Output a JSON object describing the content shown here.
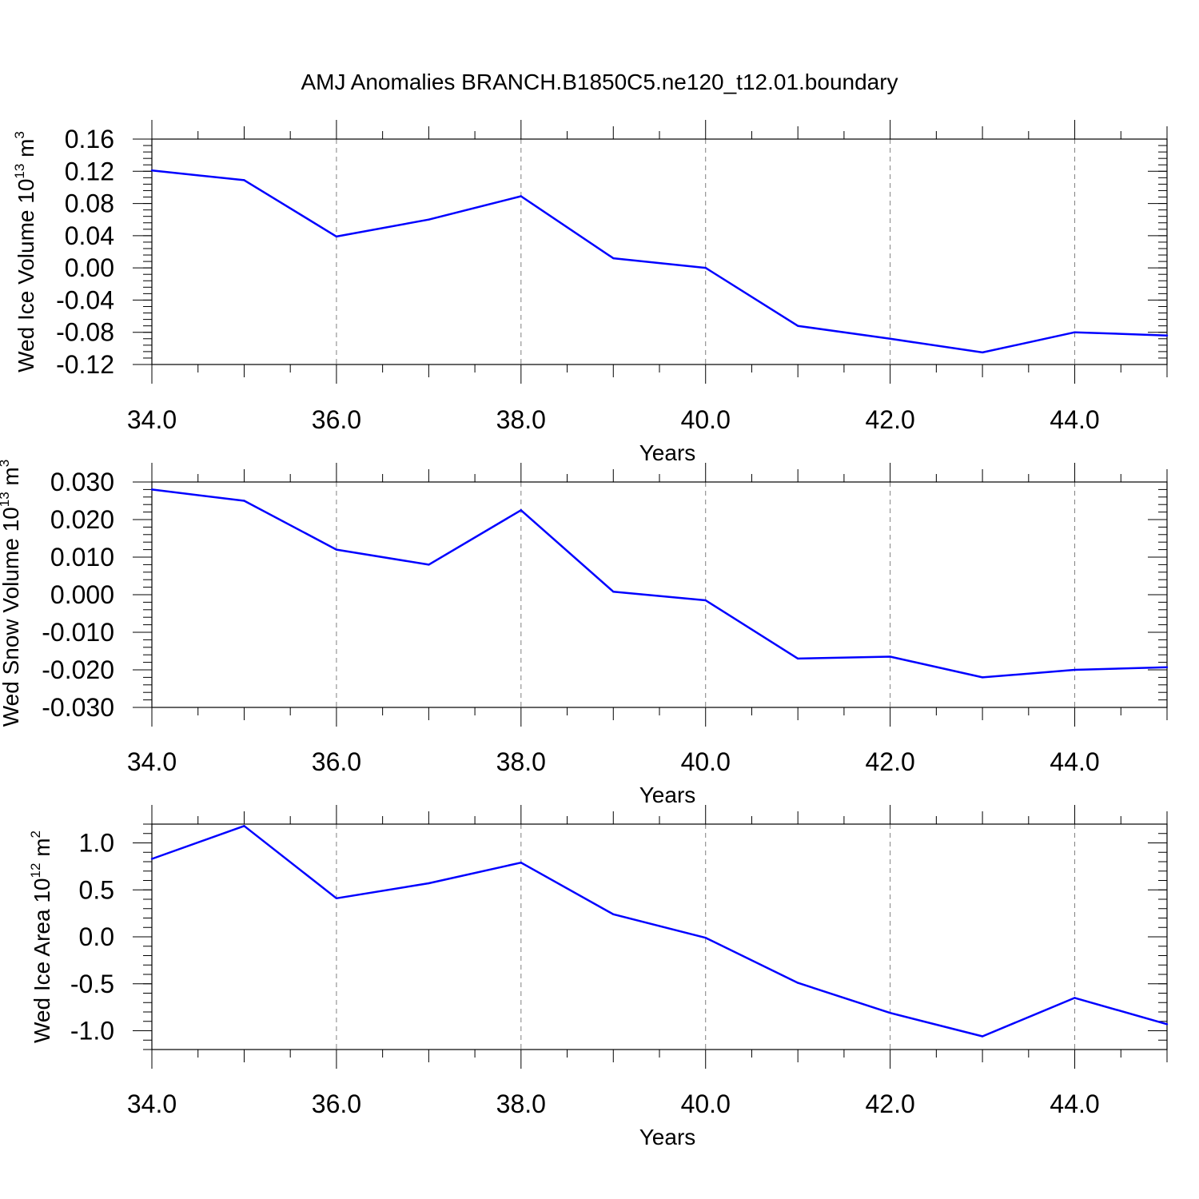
{
  "title": "AMJ Anomalies BRANCH.B1850C5.ne120_t12.01.boundary",
  "colors": {
    "line": "#0000ff",
    "axis": "#000000",
    "grid": "#808080"
  },
  "chart_data": [
    {
      "type": "line",
      "ylabel": {
        "text": "Wed Ice Volume 10",
        "sup": "13",
        "unit": " m",
        "unit_sup": "3"
      },
      "xlabel": "Years",
      "xlim": [
        34,
        45
      ],
      "ylim": [
        -0.12,
        0.16
      ],
      "x_ticks": [
        34,
        36,
        38,
        40,
        42,
        44
      ],
      "x_tick_labels": [
        "34.0",
        "36.0",
        "38.0",
        "40.0",
        "42.0",
        "44.0"
      ],
      "y_ticks": [
        0.16,
        0.12,
        0.08,
        0.04,
        0.0,
        -0.04,
        -0.08,
        -0.12
      ],
      "y_tick_labels": [
        "0.16",
        "0.12",
        "0.08",
        "0.04",
        "0.00",
        "-0.04",
        "-0.08",
        "-0.12"
      ],
      "y_minor_step": 0.008,
      "grid": "vertical-dashed",
      "series": [
        {
          "x": [
            34,
            35,
            36,
            37,
            38,
            39,
            40,
            41,
            42,
            43,
            44,
            45
          ],
          "y": [
            0.121,
            0.109,
            0.039,
            0.06,
            0.089,
            0.012,
            0.0,
            -0.072,
            -0.088,
            -0.105,
            -0.08,
            -0.084
          ]
        }
      ]
    },
    {
      "type": "line",
      "ylabel": {
        "text": "Wed Snow Volume 10",
        "sup": "13",
        "unit": " m",
        "unit_sup": "3"
      },
      "xlabel": "Years",
      "xlim": [
        34,
        45
      ],
      "ylim": [
        -0.03,
        0.03
      ],
      "x_ticks": [
        34,
        36,
        38,
        40,
        42,
        44
      ],
      "x_tick_labels": [
        "34.0",
        "36.0",
        "38.0",
        "40.0",
        "42.0",
        "44.0"
      ],
      "y_ticks": [
        0.03,
        0.02,
        0.01,
        0.0,
        -0.01,
        -0.02,
        -0.03
      ],
      "y_tick_labels": [
        "0.030",
        "0.020",
        "0.010",
        "0.000",
        "-0.010",
        "-0.020",
        "-0.030"
      ],
      "y_minor_step": 0.002,
      "grid": "vertical-dashed",
      "series": [
        {
          "x": [
            34,
            35,
            36,
            37,
            38,
            39,
            40,
            41,
            42,
            43,
            44,
            45
          ],
          "y": [
            0.028,
            0.025,
            0.012,
            0.008,
            0.0225,
            0.0008,
            -0.0015,
            -0.017,
            -0.0165,
            -0.022,
            -0.02,
            -0.0193
          ]
        }
      ]
    },
    {
      "type": "line",
      "ylabel": {
        "text": "Wed Ice Area 10",
        "sup": "12",
        "unit": " m",
        "unit_sup": "2"
      },
      "xlabel": "Years",
      "xlim": [
        34,
        45
      ],
      "ylim": [
        -1.2,
        1.2
      ],
      "x_ticks": [
        34,
        36,
        38,
        40,
        42,
        44
      ],
      "x_tick_labels": [
        "34.0",
        "36.0",
        "38.0",
        "40.0",
        "42.0",
        "44.0"
      ],
      "y_ticks": [
        1.0,
        0.5,
        0.0,
        -0.5,
        -1.0
      ],
      "y_tick_labels": [
        "1.0",
        "0.5",
        "0.0",
        "-0.5",
        "-1.0"
      ],
      "y_minor_step": 0.1,
      "grid": "vertical-dashed",
      "series": [
        {
          "x": [
            34,
            35,
            36,
            37,
            38,
            39,
            40,
            41,
            42,
            43,
            44,
            45
          ],
          "y": [
            0.83,
            1.18,
            0.41,
            0.57,
            0.79,
            0.24,
            -0.01,
            -0.49,
            -0.81,
            -1.06,
            -0.65,
            -0.93
          ]
        }
      ]
    }
  ]
}
